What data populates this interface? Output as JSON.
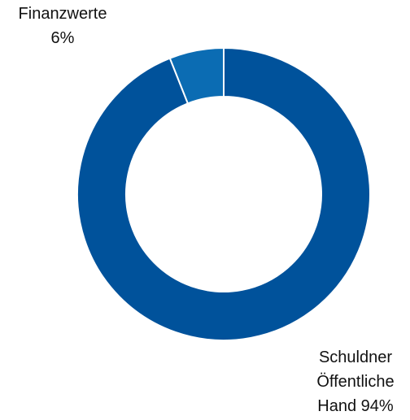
{
  "chart_data": {
    "type": "donut",
    "categories": [
      "Finanzwerte",
      "Schuldner Öffentliche Hand"
    ],
    "values": [
      6,
      94
    ],
    "value_labels": [
      "6%",
      "94%"
    ],
    "colors": [
      "#0b6cb3",
      "#00529b"
    ]
  }
}
